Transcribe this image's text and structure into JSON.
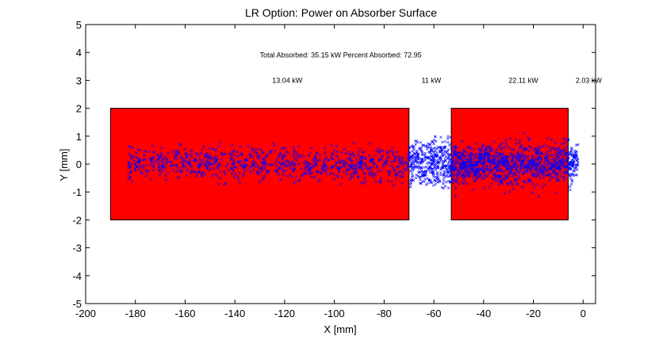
{
  "chart_data": {
    "type": "scatter",
    "title": "LR Option: Power on Absorber Surface",
    "xlabel": "X [mm]",
    "ylabel": "Y [mm]",
    "xlim": [
      -200,
      5
    ],
    "ylim": [
      -5,
      5
    ],
    "xticks": [
      -200,
      -180,
      -160,
      -140,
      -120,
      -100,
      -80,
      -60,
      -40,
      -20,
      0
    ],
    "yticks": [
      -5,
      -4,
      -3,
      -2,
      -1,
      0,
      1,
      2,
      3,
      4,
      5
    ],
    "grid": false,
    "absorber_regions": [
      {
        "x": [
          -190,
          -70
        ],
        "y": [
          -2,
          2
        ],
        "color": "#ff0000"
      },
      {
        "x": [
          -53,
          -6
        ],
        "y": [
          -2,
          2
        ],
        "color": "#ff0000"
      }
    ],
    "scatter_series": [
      {
        "x_range": [
          -183,
          -70
        ],
        "y_sigma": 0.3,
        "y_clip": 0.8,
        "count": 850,
        "marker": "x",
        "color": "#0000ff"
      },
      {
        "x_range": [
          -70,
          -53
        ],
        "y_sigma": 0.45,
        "y_clip": 1.0,
        "count": 400,
        "marker": "x",
        "color": "#0000ff"
      },
      {
        "x_range": [
          -53,
          -2
        ],
        "y_sigma": 0.35,
        "y_clip": 1.2,
        "count": 1100,
        "marker": "x",
        "color": "#0000ff"
      }
    ],
    "annotations": [
      {
        "text": "Total Absorbed: 35.15 kW Percent Absorbed: 72.95",
        "x": -130,
        "y": 3.9
      },
      {
        "text": "13.04 kW",
        "x": -125,
        "y": 3.0
      },
      {
        "text": "11 kW",
        "x": -65,
        "y": 3.0
      },
      {
        "text": "22.11 kW",
        "x": -30,
        "y": 3.0
      },
      {
        "text": "2.03 kW",
        "x": -3,
        "y": 3.0
      }
    ]
  }
}
